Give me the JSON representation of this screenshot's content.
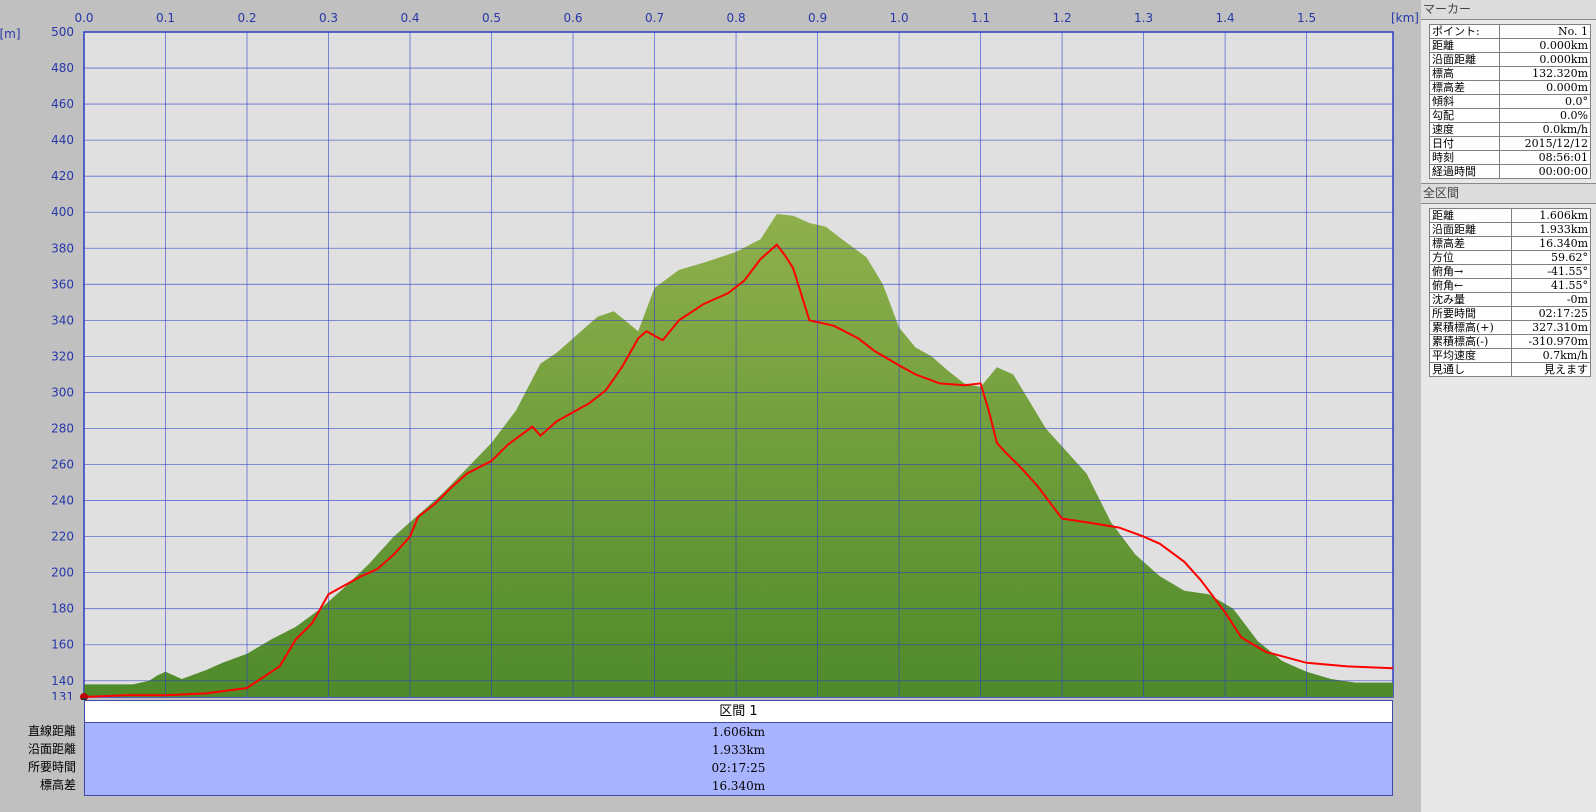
{
  "chart_data": {
    "type": "area",
    "x_unit": "[km]",
    "y_unit": "[m]",
    "x_ticks": [
      "0.0",
      "0.1",
      "0.2",
      "0.3",
      "0.4",
      "0.5",
      "0.6",
      "0.7",
      "0.8",
      "0.9",
      "1.0",
      "1.1",
      "1.2",
      "1.3",
      "1.4",
      "1.5"
    ],
    "y_ticks": [
      "500",
      "480",
      "460",
      "440",
      "420",
      "400",
      "380",
      "360",
      "340",
      "320",
      "300",
      "280",
      "260",
      "240",
      "220",
      "200",
      "180",
      "160",
      "140"
    ],
    "y_min_label": "131",
    "xlim": [
      0,
      1.606
    ],
    "ylim": [
      131,
      500
    ],
    "grid": true,
    "colors": {
      "terrain": "#6a9e3a",
      "track": "#ff0000",
      "grid": "#2b3cc8",
      "background": "#e0e0e0"
    },
    "series": [
      {
        "kind": "terrain-area",
        "x": [
          0,
          0.03,
          0.06,
          0.08,
          0.09,
          0.1,
          0.12,
          0.15,
          0.17,
          0.2,
          0.23,
          0.26,
          0.29,
          0.32,
          0.35,
          0.38,
          0.41,
          0.44,
          0.47,
          0.5,
          0.53,
          0.56,
          0.58,
          0.6,
          0.63,
          0.65,
          0.68,
          0.7,
          0.73,
          0.76,
          0.8,
          0.83,
          0.85,
          0.87,
          0.89,
          0.91,
          0.93,
          0.96,
          0.98,
          1.0,
          1.02,
          1.04,
          1.06,
          1.08,
          1.1,
          1.12,
          1.14,
          1.16,
          1.18,
          1.2,
          1.23,
          1.26,
          1.29,
          1.32,
          1.35,
          1.38,
          1.41,
          1.44,
          1.47,
          1.5,
          1.53,
          1.56,
          1.606
        ],
        "y": [
          138,
          138,
          138,
          140,
          143,
          145,
          141,
          146,
          150,
          155,
          163,
          170,
          180,
          192,
          205,
          220,
          232,
          244,
          258,
          272,
          290,
          316,
          322,
          330,
          342,
          345,
          334,
          358,
          368,
          372,
          378,
          385,
          399,
          398,
          394,
          392,
          385,
          375,
          360,
          336,
          325,
          320,
          312,
          305,
          303,
          314,
          310,
          295,
          280,
          270,
          255,
          228,
          210,
          198,
          190,
          188,
          180,
          162,
          151,
          145,
          141,
          139,
          139
        ]
      },
      {
        "kind": "track-line",
        "x": [
          0,
          0.05,
          0.1,
          0.15,
          0.2,
          0.22,
          0.24,
          0.26,
          0.28,
          0.3,
          0.32,
          0.34,
          0.36,
          0.38,
          0.4,
          0.41,
          0.43,
          0.45,
          0.47,
          0.5,
          0.52,
          0.55,
          0.56,
          0.57,
          0.58,
          0.6,
          0.62,
          0.64,
          0.66,
          0.68,
          0.69,
          0.71,
          0.73,
          0.76,
          0.79,
          0.81,
          0.83,
          0.85,
          0.86,
          0.87,
          0.89,
          0.92,
          0.95,
          0.97,
          1.0,
          1.02,
          1.05,
          1.08,
          1.1,
          1.11,
          1.12,
          1.13,
          1.15,
          1.17,
          1.19,
          1.2,
          1.23,
          1.27,
          1.3,
          1.32,
          1.35,
          1.37,
          1.4,
          1.42,
          1.45,
          1.5,
          1.55,
          1.606
        ],
        "y": [
          131,
          132,
          132,
          133,
          136,
          142,
          148,
          163,
          172,
          188,
          193,
          198,
          202,
          210,
          220,
          231,
          238,
          247,
          255,
          262,
          271,
          281,
          276,
          280,
          284,
          289,
          294,
          301,
          314,
          330,
          334,
          329,
          340,
          349,
          355,
          362,
          374,
          382,
          376,
          369,
          340,
          337,
          330,
          323,
          315,
          310,
          305,
          304,
          305,
          290,
          272,
          267,
          258,
          248,
          236,
          230,
          228,
          225,
          220,
          216,
          206,
          196,
          178,
          164,
          156,
          150,
          148,
          147
        ]
      }
    ]
  },
  "sections": {
    "header": "区間 1",
    "row_labels": [
      "直線距離",
      "沿面距離",
      "所要時間",
      "標高差"
    ],
    "values": [
      "1.606km",
      "1.933km",
      "02:17:25",
      "16.340m"
    ]
  },
  "marker_panel": {
    "title": "マーカー",
    "rows": [
      {
        "label": "ポイント:",
        "value": "No. 1"
      },
      {
        "label": "距離",
        "value": "0.000km"
      },
      {
        "label": "沿面距離",
        "value": "0.000km"
      },
      {
        "label": "標高",
        "value": "132.320m"
      },
      {
        "label": "標高差",
        "value": "0.000m"
      },
      {
        "label": "傾斜",
        "value": "0.0°"
      },
      {
        "label": "勾配",
        "value": "0.0%"
      },
      {
        "label": "速度",
        "value": "0.0km/h"
      },
      {
        "label": "日付",
        "value": "2015/12/12"
      },
      {
        "label": "時刻",
        "value": "08:56:01"
      },
      {
        "label": "経過時間",
        "value": "00:00:00"
      }
    ]
  },
  "total_panel": {
    "title": "全区間",
    "rows": [
      {
        "label": "距離",
        "value": "1.606km"
      },
      {
        "label": "沿面距離",
        "value": "1.933km"
      },
      {
        "label": "標高差",
        "value": "16.340m"
      },
      {
        "label": "方位",
        "value": "59.62°"
      },
      {
        "label": "俯角→",
        "value": "-41.55°"
      },
      {
        "label": "俯角←",
        "value": "41.55°"
      },
      {
        "label": "沈み量",
        "value": "-0m"
      },
      {
        "label": "所要時間",
        "value": "02:17:25"
      },
      {
        "label": "累積標高(+)",
        "value": "327.310m"
      },
      {
        "label": "累積標高(-)",
        "value": "-310.970m"
      },
      {
        "label": "平均速度",
        "value": "0.7km/h"
      },
      {
        "label": "見通し",
        "value": "見えます"
      }
    ]
  }
}
